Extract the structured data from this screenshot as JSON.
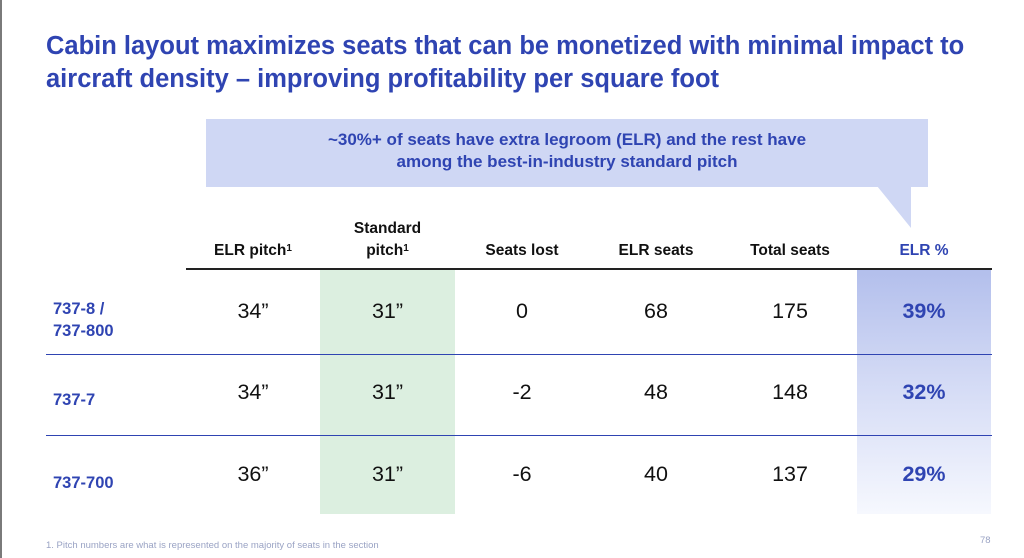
{
  "title": "Cabin layout maximizes seats that can be monetized with minimal impact to aircraft density – improving profitability per square foot",
  "callout": {
    "line1": "~30%+ of seats have extra legroom (ELR) and the rest have",
    "line2": "among the best-in-industry standard pitch"
  },
  "table": {
    "headers": {
      "elr_pitch": "ELR pitch",
      "elr_pitch_sup": "1",
      "standard_line1": "Standard",
      "standard_line2": "pitch",
      "standard_sup": "1",
      "seats_lost": "Seats lost",
      "elr_seats": "ELR seats",
      "total_seats": "Total seats",
      "elr_pct": "ELR %"
    },
    "rows": [
      {
        "label_line1": "737-8 /",
        "label_line2": "737-800",
        "elr_pitch": "34”",
        "standard_pitch": "31”",
        "seats_lost": "0",
        "elr_seats": "68",
        "total_seats": "175",
        "elr_pct": "39%"
      },
      {
        "label_line1": "737-7",
        "label_line2": "",
        "elr_pitch": "34”",
        "standard_pitch": "31”",
        "seats_lost": "-2",
        "elr_seats": "48",
        "total_seats": "148",
        "elr_pct": "32%"
      },
      {
        "label_line1": "737-700",
        "label_line2": "",
        "elr_pitch": "36”",
        "standard_pitch": "31”",
        "seats_lost": "-6",
        "elr_seats": "40",
        "total_seats": "137",
        "elr_pct": "29%"
      }
    ]
  },
  "footnote": "1. Pitch numbers are what is represented on the majority of seats in the section",
  "page_number": "78",
  "colors": {
    "accent_blue": "#2f44b2",
    "callout_fill": "#cfd7f4",
    "standard_column_fill": "#dcefe0",
    "elr_column_fill": "#b3bfec"
  }
}
